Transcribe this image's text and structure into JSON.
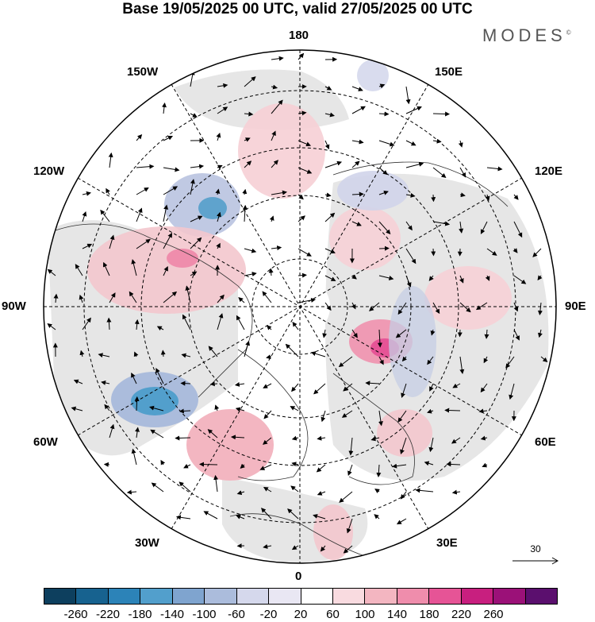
{
  "title": "Base 19/05/2025 00 UTC, valid 27/05/2025 00 UTC",
  "brand": "MODES",
  "brand_mark": "©",
  "longitude_labels": {
    "top": "180",
    "bottom": "0",
    "left": "90W",
    "right": "90E",
    "upper_left_1": "150W",
    "upper_left_2": "120W",
    "lower_left_1": "60W",
    "lower_left_2": "30W",
    "upper_right_1": "150E",
    "upper_right_2": "120E",
    "lower_right_1": "60E",
    "lower_right_2": "30E"
  },
  "reference_vector": "30",
  "colorbar": {
    "colors": [
      "#0d3f5e",
      "#17628f",
      "#2c83b8",
      "#529fcc",
      "#7fa4cf",
      "#abbcdc",
      "#d5d8ec",
      "#e9e7f3",
      "#ffffff",
      "#f9dbe0",
      "#f3b6c1",
      "#ef8dac",
      "#e65496",
      "#c81f7f",
      "#9b1178",
      "#5b0f6e"
    ],
    "ticks": [
      "-260",
      "-220",
      "-180",
      "-140",
      "-100",
      "-60",
      "-20",
      "20",
      "60",
      "100",
      "140",
      "180",
      "220",
      "260"
    ]
  },
  "icons": [
    "polar-stereographic-map",
    "wind-arrow-icon"
  ]
}
